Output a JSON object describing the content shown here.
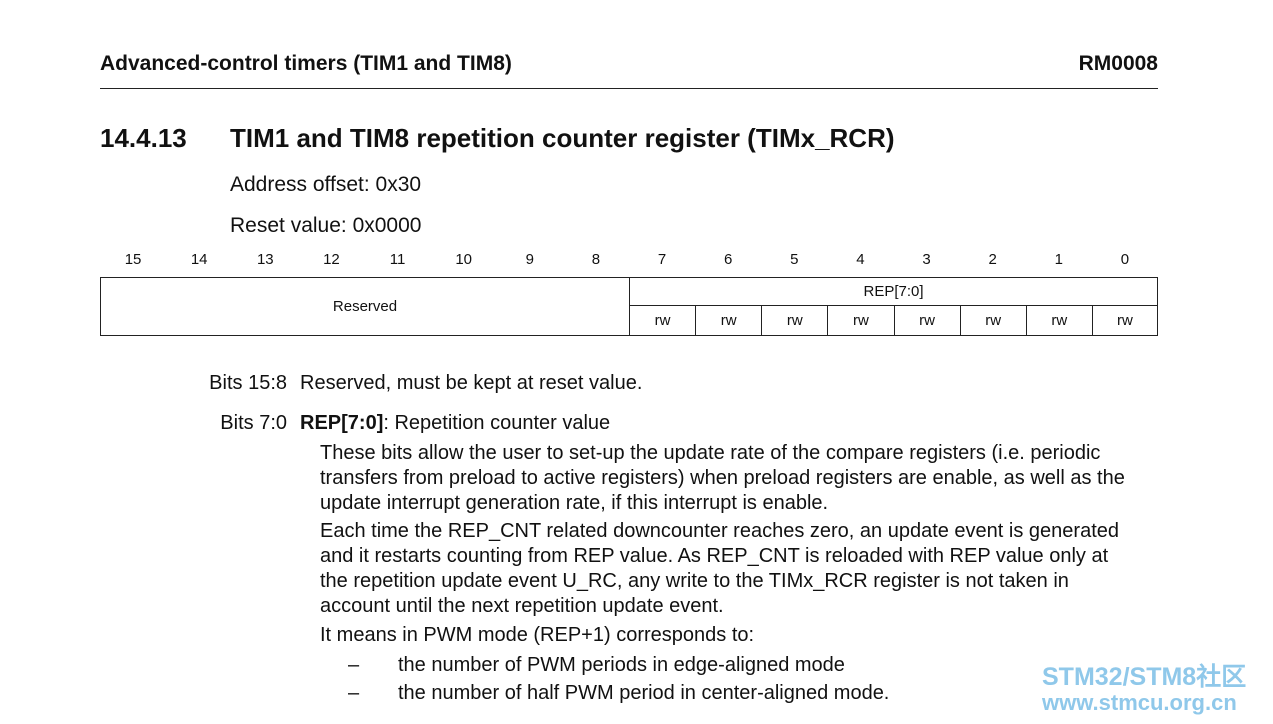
{
  "header": {
    "title": "Advanced-control timers (TIM1 and TIM8)",
    "doc_id": "RM0008"
  },
  "section": {
    "number": "14.4.13",
    "title": "TIM1 and TIM8 repetition counter register (TIMx_RCR)"
  },
  "address_offset": "Address offset: 0x30",
  "reset_value": "Reset value: 0x0000",
  "register": {
    "bit_numbers": [
      15,
      14,
      13,
      12,
      11,
      10,
      9,
      8,
      7,
      6,
      5,
      4,
      3,
      2,
      1,
      0
    ],
    "reserved": "Reserved",
    "field": "REP[7:0]",
    "access": [
      "rw",
      "rw",
      "rw",
      "rw",
      "rw",
      "rw",
      "rw",
      "rw"
    ]
  },
  "descriptions": [
    {
      "bits": "Bits 15:8",
      "text": "Reserved, must be kept at reset value."
    },
    {
      "bits": "Bits 7:0",
      "field": "REP[7:0]",
      "text": ": Repetition counter value",
      "lines": [
        "These bits allow the user to set-up the update rate of the compare registers (i.e. periodic",
        "transfers from preload to active registers) when preload registers are enable, as well as the",
        "update interrupt generation rate, if this interrupt is enable.",
        "Each time the REP_CNT related downcounter reaches zero, an update event is generated",
        "and it restarts counting from REP value. As REP_CNT is reloaded with REP value only at",
        "the repetition update event U_RC, any write to the TIMx_RCR register is not taken in",
        "account until the next repetition update event.",
        "It means in PWM mode (REP+1) corresponds to:"
      ],
      "bullets": [
        {
          "marker": "–",
          "text": "the number of PWM periods in edge-aligned mode"
        },
        {
          "marker": "–",
          "text": "the number of half PWM period in center-aligned mode."
        }
      ]
    }
  ],
  "watermark": {
    "line1": "STM32/STM8社区",
    "line2": "www.stmcu.org.cn"
  }
}
